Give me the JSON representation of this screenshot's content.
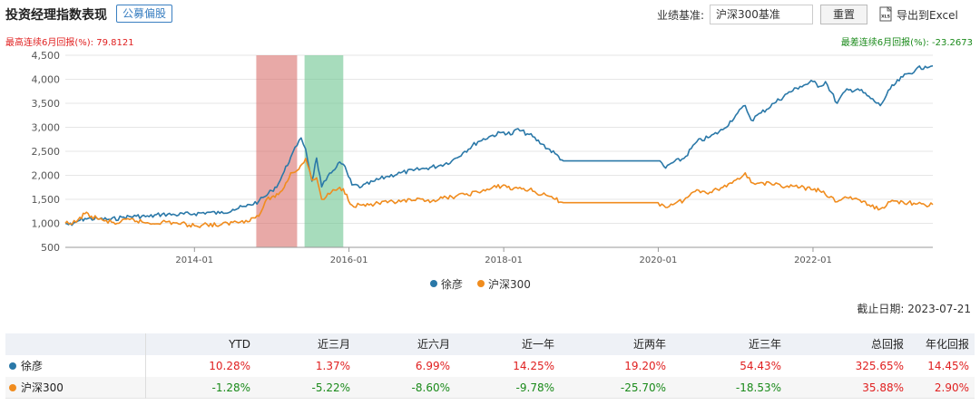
{
  "header": {
    "title": "投资经理指数表现",
    "tag": "公募偏股",
    "benchmark_label": "业绩基准:",
    "benchmark_value": "沪深300基准",
    "reset_label": "重置",
    "export_label": "导出到Excel",
    "export_icon": "xls-file-icon"
  },
  "stats": {
    "best_6m": "最高连续6月回报(%): 79.8121",
    "worst_6m": "最差连续6月回报(%): -23.2673"
  },
  "colors": {
    "manager": "#2a78a8",
    "index": "#f08c1e",
    "best_band": "#d9706c",
    "worst_band": "#6cc490",
    "positive": "#e02020",
    "negative": "#1a8a1a"
  },
  "chart_data": {
    "type": "line",
    "xlabel": "",
    "ylabel": "",
    "x_range": [
      "2012-05-01",
      "2023-07-21"
    ],
    "ylim": [
      500,
      4500
    ],
    "yticks": [
      500,
      1000,
      1500,
      2000,
      2500,
      3000,
      3500,
      4000,
      4500
    ],
    "ytick_labels": [
      "500",
      "1,000",
      "1,500",
      "2,000",
      "2,500",
      "3,000",
      "3,500",
      "4,000",
      "4,500"
    ],
    "xticks": [
      "2014-01",
      "2016-01",
      "2018-01",
      "2020-01",
      "2022-01"
    ],
    "grid": "horizontal",
    "legend_position": "bottom-center",
    "shaded_bands": [
      {
        "label": "最高连续6月回报",
        "start": "2014-10-20",
        "end": "2015-05-01"
      },
      {
        "label": "最差连续6月回报",
        "start": "2015-06-05",
        "end": "2015-12-05"
      }
    ],
    "series": [
      {
        "name": "徐彦",
        "points": [
          [
            "2012-05-01",
            1000
          ],
          [
            "2012-06-01",
            960
          ],
          [
            "2012-07-01",
            1050
          ],
          [
            "2012-08-01",
            1100
          ],
          [
            "2012-10-01",
            1090
          ],
          [
            "2012-12-01",
            1080
          ],
          [
            "2013-02-01",
            1130
          ],
          [
            "2013-04-01",
            1150
          ],
          [
            "2013-06-01",
            1140
          ],
          [
            "2013-08-01",
            1190
          ],
          [
            "2013-10-01",
            1180
          ],
          [
            "2014-01-01",
            1200
          ],
          [
            "2014-03-01",
            1230
          ],
          [
            "2014-05-01",
            1210
          ],
          [
            "2014-07-01",
            1290
          ],
          [
            "2014-09-01",
            1350
          ],
          [
            "2014-11-01",
            1460
          ],
          [
            "2014-12-01",
            1560
          ],
          [
            "2015-01-01",
            1680
          ],
          [
            "2015-02-01",
            1820
          ],
          [
            "2015-03-01",
            2080
          ],
          [
            "2015-04-01",
            2380
          ],
          [
            "2015-05-01",
            2620
          ],
          [
            "2015-05-20",
            2780
          ],
          [
            "2015-06-10",
            2550
          ],
          [
            "2015-07-10",
            1880
          ],
          [
            "2015-08-01",
            2360
          ],
          [
            "2015-08-25",
            1760
          ],
          [
            "2015-09-15",
            1900
          ],
          [
            "2015-10-10",
            2050
          ],
          [
            "2015-11-10",
            2250
          ],
          [
            "2015-12-05",
            2230
          ],
          [
            "2016-01-15",
            1800
          ],
          [
            "2016-03-01",
            1760
          ],
          [
            "2016-05-01",
            1880
          ],
          [
            "2016-07-01",
            1980
          ],
          [
            "2016-09-01",
            2050
          ],
          [
            "2016-11-01",
            2100
          ],
          [
            "2017-01-01",
            2150
          ],
          [
            "2017-03-01",
            2200
          ],
          [
            "2017-05-01",
            2300
          ],
          [
            "2017-07-01",
            2500
          ],
          [
            "2017-09-01",
            2700
          ],
          [
            "2017-11-01",
            2820
          ],
          [
            "2018-01-01",
            2900
          ],
          [
            "2018-02-10",
            2850
          ],
          [
            "2018-03-01",
            2960
          ],
          [
            "2018-05-01",
            2850
          ],
          [
            "2018-07-01",
            2650
          ],
          [
            "2018-09-01",
            2450
          ],
          [
            "2018-10-10",
            2300
          ],
          [
            "2019-07-01",
            2300
          ],
          [
            "2019-12-31",
            2300
          ],
          [
            "2020-02-05",
            2150
          ],
          [
            "2020-03-01",
            2250
          ],
          [
            "2020-05-01",
            2350
          ],
          [
            "2020-07-01",
            2700
          ],
          [
            "2020-09-01",
            2800
          ],
          [
            "2020-11-01",
            2950
          ],
          [
            "2021-01-01",
            3250
          ],
          [
            "2021-02-15",
            3450
          ],
          [
            "2021-03-15",
            3150
          ],
          [
            "2021-05-01",
            3300
          ],
          [
            "2021-07-01",
            3500
          ],
          [
            "2021-09-01",
            3700
          ],
          [
            "2021-11-01",
            3850
          ],
          [
            "2022-01-01",
            3950
          ],
          [
            "2022-02-01",
            3850
          ],
          [
            "2022-03-01",
            3950
          ],
          [
            "2022-04-25",
            3500
          ],
          [
            "2022-06-01",
            3750
          ],
          [
            "2022-08-01",
            3800
          ],
          [
            "2022-10-01",
            3600
          ],
          [
            "2022-11-15",
            3450
          ],
          [
            "2023-01-01",
            3800
          ],
          [
            "2023-03-01",
            4050
          ],
          [
            "2023-05-01",
            4200
          ],
          [
            "2023-06-15",
            4270
          ],
          [
            "2023-07-21",
            4280
          ]
        ]
      },
      {
        "name": "沪深300",
        "points": [
          [
            "2012-05-01",
            1000
          ],
          [
            "2012-06-01",
            980
          ],
          [
            "2012-07-01",
            1080
          ],
          [
            "2012-08-01",
            1200
          ],
          [
            "2012-09-01",
            1150
          ],
          [
            "2012-11-01",
            1050
          ],
          [
            "2013-01-01",
            1000
          ],
          [
            "2013-03-01",
            1080
          ],
          [
            "2013-06-01",
            1000
          ],
          [
            "2013-08-01",
            1030
          ],
          [
            "2013-10-01",
            1010
          ],
          [
            "2014-01-01",
            950
          ],
          [
            "2014-03-01",
            980
          ],
          [
            "2014-05-01",
            960
          ],
          [
            "2014-07-01",
            1020
          ],
          [
            "2014-09-01",
            1060
          ],
          [
            "2014-11-01",
            1150
          ],
          [
            "2014-12-01",
            1450
          ],
          [
            "2015-01-01",
            1550
          ],
          [
            "2015-02-01",
            1600
          ],
          [
            "2015-03-01",
            1750
          ],
          [
            "2015-04-01",
            2050
          ],
          [
            "2015-05-01",
            2100
          ],
          [
            "2015-06-10",
            2350
          ],
          [
            "2015-07-10",
            1900
          ],
          [
            "2015-08-01",
            1950
          ],
          [
            "2015-08-25",
            1500
          ],
          [
            "2015-09-15",
            1550
          ],
          [
            "2015-10-10",
            1650
          ],
          [
            "2015-11-10",
            1720
          ],
          [
            "2015-12-05",
            1720
          ],
          [
            "2016-01-15",
            1380
          ],
          [
            "2016-03-01",
            1380
          ],
          [
            "2016-05-01",
            1400
          ],
          [
            "2016-07-01",
            1430
          ],
          [
            "2016-09-01",
            1450
          ],
          [
            "2016-11-01",
            1480
          ],
          [
            "2017-01-01",
            1470
          ],
          [
            "2017-03-01",
            1500
          ],
          [
            "2017-05-01",
            1550
          ],
          [
            "2017-07-01",
            1600
          ],
          [
            "2017-09-01",
            1650
          ],
          [
            "2017-11-01",
            1720
          ],
          [
            "2018-01-01",
            1800
          ],
          [
            "2018-02-10",
            1700
          ],
          [
            "2018-03-01",
            1750
          ],
          [
            "2018-05-01",
            1700
          ],
          [
            "2018-07-01",
            1600
          ],
          [
            "2018-09-01",
            1500
          ],
          [
            "2018-10-10",
            1430
          ],
          [
            "2019-07-01",
            1430
          ],
          [
            "2019-12-31",
            1430
          ],
          [
            "2020-02-05",
            1330
          ],
          [
            "2020-03-01",
            1400
          ],
          [
            "2020-05-01",
            1480
          ],
          [
            "2020-07-01",
            1700
          ],
          [
            "2020-09-01",
            1650
          ],
          [
            "2020-11-01",
            1750
          ],
          [
            "2021-01-01",
            1900
          ],
          [
            "2021-02-15",
            2050
          ],
          [
            "2021-03-15",
            1850
          ],
          [
            "2021-05-01",
            1850
          ],
          [
            "2021-07-01",
            1800
          ],
          [
            "2021-09-01",
            1780
          ],
          [
            "2021-11-01",
            1750
          ],
          [
            "2022-01-01",
            1700
          ],
          [
            "2022-02-01",
            1680
          ],
          [
            "2022-03-01",
            1600
          ],
          [
            "2022-04-25",
            1450
          ],
          [
            "2022-06-01",
            1550
          ],
          [
            "2022-08-01",
            1500
          ],
          [
            "2022-10-01",
            1350
          ],
          [
            "2022-11-15",
            1300
          ],
          [
            "2023-01-01",
            1450
          ],
          [
            "2023-03-01",
            1450
          ],
          [
            "2023-05-01",
            1400
          ],
          [
            "2023-06-15",
            1380
          ],
          [
            "2023-07-21",
            1390
          ]
        ]
      }
    ]
  },
  "legend": {
    "items": [
      {
        "label": "徐彦"
      },
      {
        "label": "沪深300"
      }
    ]
  },
  "cutoff": "截止日期: 2023-07-21",
  "table": {
    "headers": [
      "YTD",
      "近三月",
      "近六月",
      "近一年",
      "近两年",
      "近三年",
      "总回报",
      "年化回报"
    ],
    "rows": [
      {
        "name": "徐彦",
        "values": [
          "10.28%",
          "1.37%",
          "6.99%",
          "14.25%",
          "19.20%",
          "54.43%",
          "325.65%",
          "14.45%"
        ]
      },
      {
        "name": "沪深300",
        "values": [
          "-1.28%",
          "-5.22%",
          "-8.60%",
          "-9.78%",
          "-25.70%",
          "-18.53%",
          "35.88%",
          "2.90%"
        ]
      }
    ]
  }
}
